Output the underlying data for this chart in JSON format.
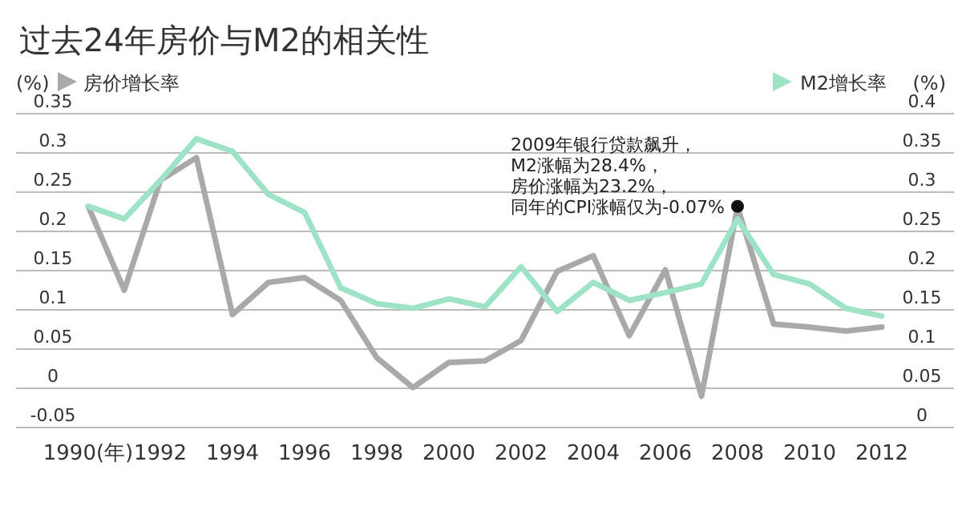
{
  "chart_data": {
    "type": "line",
    "title": "过去24年房价与M2的相关性",
    "ylabel": "(%)",
    "y2label": "(%)",
    "x": [
      1990,
      1991,
      1992,
      1993,
      1994,
      1995,
      1996,
      1997,
      1998,
      1999,
      2000,
      2001,
      2002,
      2003,
      2004,
      2005,
      2006,
      2007,
      2008,
      2009,
      2010,
      2011,
      2012
    ],
    "series": [
      {
        "name": "房价增长率",
        "color": "#a9a9a9",
        "values": [
          0.232,
          0.125,
          0.265,
          0.294,
          0.094,
          0.135,
          0.141,
          0.112,
          0.039,
          0.001,
          0.033,
          0.035,
          0.061,
          0.149,
          0.169,
          0.067,
          0.151,
          -0.01,
          0.231,
          0.082,
          0.078,
          0.073,
          0.078
        ]
      },
      {
        "name": "M2增长率",
        "color": "#9fe3c6",
        "axis": "y2",
        "values": [
          0.282,
          0.266,
          0.315,
          0.368,
          0.352,
          0.297,
          0.274,
          0.178,
          0.158,
          0.152,
          0.164,
          0.154,
          0.205,
          0.148,
          0.185,
          0.162,
          0.172,
          0.183,
          0.266,
          0.195,
          0.183,
          0.152,
          0.142
        ]
      }
    ],
    "xlim": [
      1988,
      2014
    ],
    "xticks": [
      {
        "value": 1990,
        "label": "1990(年)"
      },
      1992,
      1994,
      1996,
      1998,
      2000,
      2002,
      2004,
      2006,
      2008,
      2010,
      2012
    ],
    "ylim": [
      -0.05,
      0.35
    ],
    "yticks": [
      -0.05,
      0,
      0.05,
      0.1,
      0.15,
      0.2,
      0.25,
      0.3,
      0.35
    ],
    "y2lim": [
      0,
      0.4
    ],
    "y2ticks": [
      0,
      0.05,
      0.1,
      0.15,
      0.2,
      0.25,
      0.3,
      0.35,
      0.4
    ],
    "grid": "y",
    "legend": "top",
    "annotations": [
      "2009年银行贷款飙升，",
      "M2涨幅为28.4%，",
      "房价涨幅为23.2%，",
      {
        "text": "同年的CPI涨幅仅为-0.07%",
        "x": 2008,
        "y": 0.232
      }
    ]
  }
}
